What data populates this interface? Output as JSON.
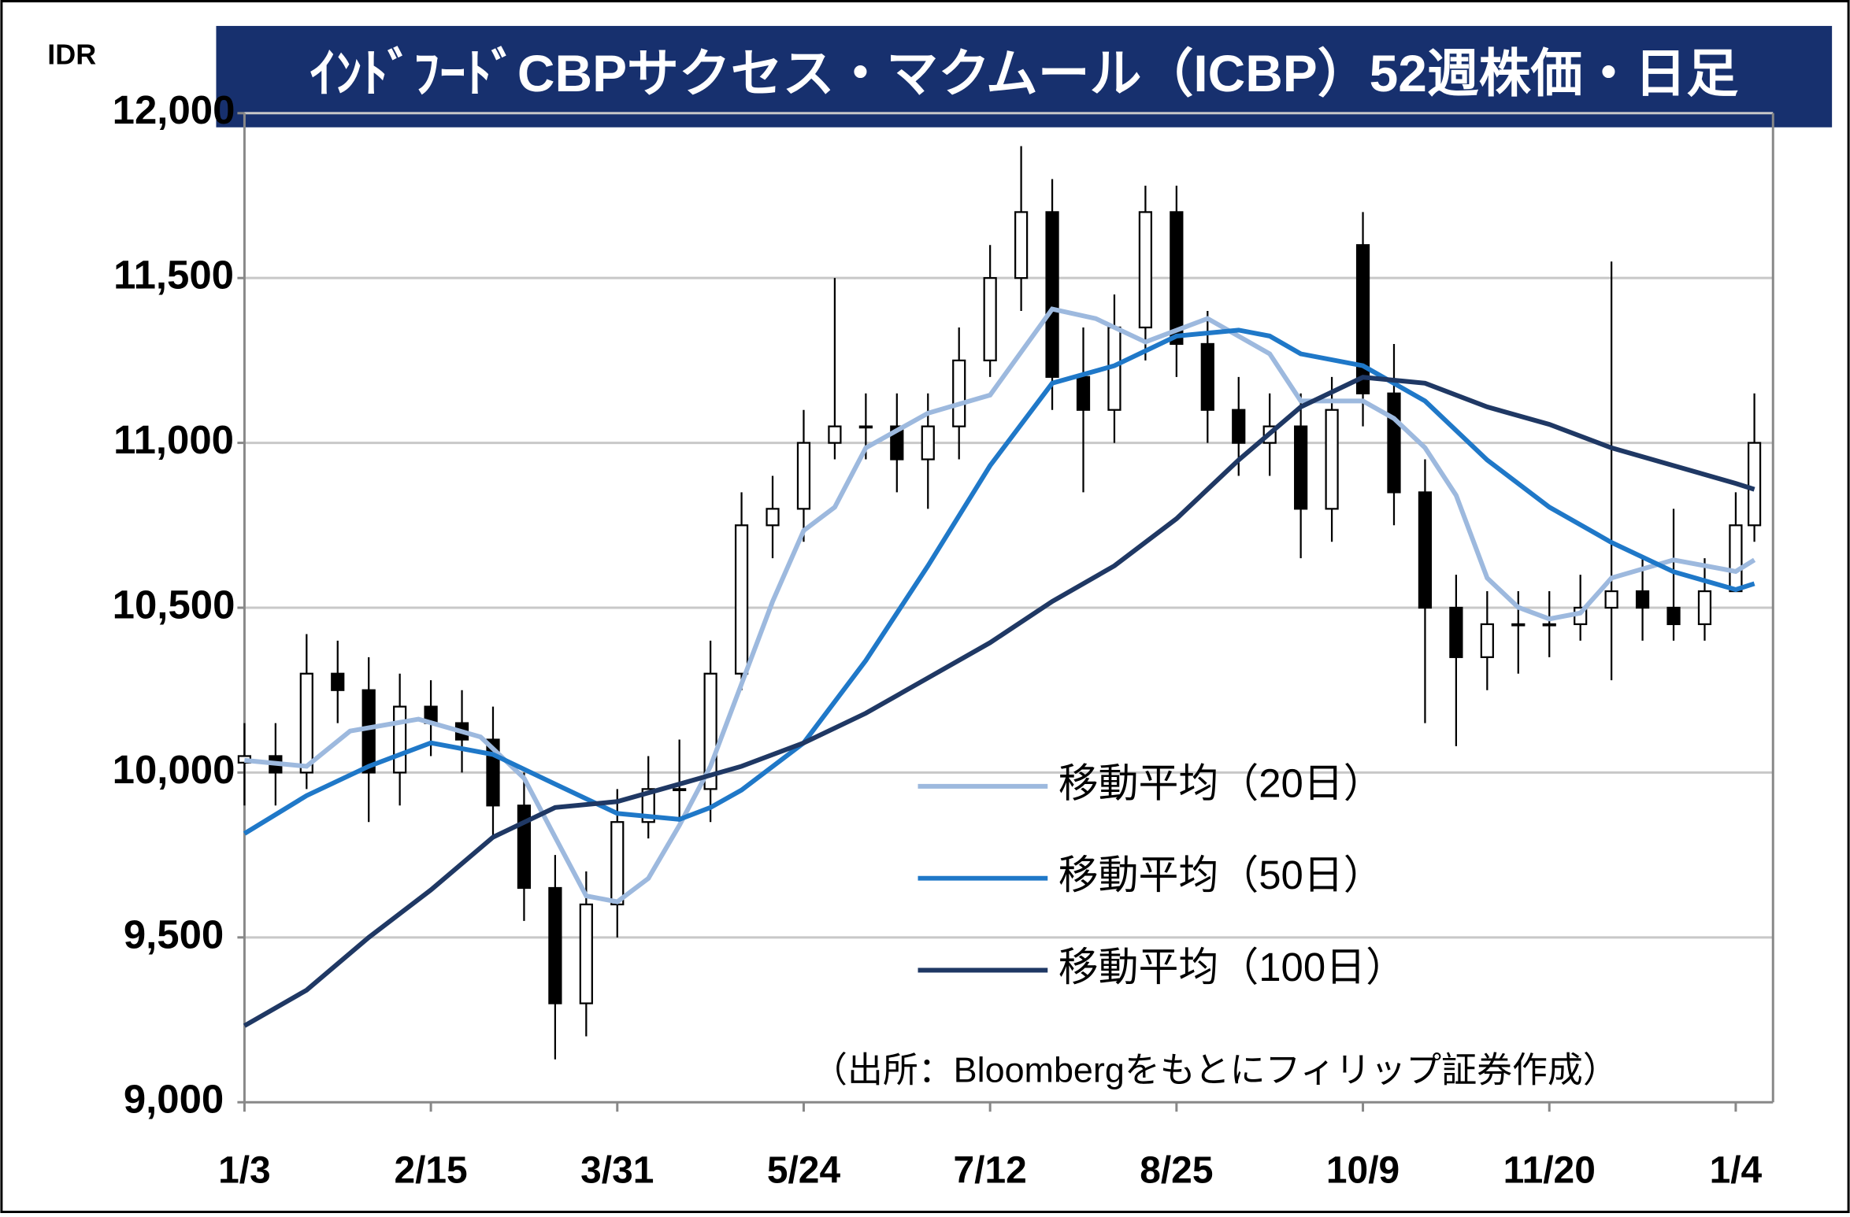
{
  "chart_data": {
    "type": "candlestick",
    "title": "ｲﾝﾄﾞﾌｰﾄﾞCBPサクセス・マクムール（ICBP）52週株価・日足",
    "y_unit": "IDR",
    "source": "（出所：Bloombergをもとにフィリップ証券作成）",
    "xlim": [
      0,
      246
    ],
    "xticks": [
      {
        "value": 0,
        "label": "1/3"
      },
      {
        "value": 30,
        "label": "2/15"
      },
      {
        "value": 60,
        "label": "3/31"
      },
      {
        "value": 90,
        "label": "5/24"
      },
      {
        "value": 120,
        "label": "7/12"
      },
      {
        "value": 150,
        "label": "8/25"
      },
      {
        "value": 180,
        "label": "10/9"
      },
      {
        "value": 210,
        "label": "11/20"
      },
      {
        "value": 240,
        "label": "1/4"
      }
    ],
    "ylim": [
      9000,
      12000
    ],
    "yticks": [
      {
        "value": 9000,
        "label": "9,000"
      },
      {
        "value": 9500,
        "label": "9,500"
      },
      {
        "value": 10000,
        "label": "10,000"
      },
      {
        "value": 10500,
        "label": "10,500"
      },
      {
        "value": 11000,
        "label": "11,000"
      },
      {
        "value": 11500,
        "label": "11,500"
      },
      {
        "value": 12000,
        "label": "12,000"
      }
    ],
    "grid": true,
    "candles": {
      "up_color": "#ffffff",
      "down_color": "#000000",
      "x": [
        0,
        5,
        10,
        15,
        20,
        25,
        30,
        35,
        40,
        45,
        50,
        55,
        60,
        65,
        70,
        75,
        80,
        85,
        90,
        95,
        100,
        105,
        110,
        115,
        120,
        125,
        130,
        135,
        140,
        145,
        150,
        155,
        160,
        165,
        170,
        175,
        180,
        185,
        190,
        195,
        200,
        205,
        210,
        215,
        220,
        225,
        230,
        235,
        240,
        243
      ],
      "open": [
        10030,
        10050,
        10000,
        10300,
        10250,
        10000,
        10200,
        10150,
        10100,
        9900,
        9650,
        9300,
        9600,
        9850,
        9950,
        9950,
        10300,
        10750,
        10800,
        11000,
        11050,
        11050,
        10950,
        11050,
        11250,
        11500,
        11700,
        11200,
        11100,
        11350,
        11700,
        11300,
        11100,
        11000,
        11050,
        10800,
        11600,
        11150,
        10850,
        10500,
        10350,
        10450,
        10450,
        10450,
        10500,
        10550,
        10500,
        10450,
        10550,
        10750
      ],
      "high": [
        10150,
        10150,
        10420,
        10400,
        10350,
        10300,
        10280,
        10250,
        10200,
        10000,
        9750,
        9700,
        9950,
        10050,
        10100,
        10400,
        10850,
        10900,
        11100,
        11500,
        11150,
        11150,
        11150,
        11350,
        11600,
        11900,
        11800,
        11350,
        11450,
        11780,
        11780,
        11400,
        11200,
        11150,
        11150,
        11200,
        11700,
        11300,
        10950,
        10600,
        10550,
        10550,
        10550,
        10600,
        11550,
        10650,
        10800,
        10650,
        10850,
        11150
      ],
      "low": [
        9900,
        9900,
        9950,
        10150,
        9850,
        9900,
        10050,
        10000,
        9800,
        9550,
        9130,
        9200,
        9500,
        9800,
        9850,
        9850,
        10250,
        10650,
        10700,
        10950,
        10950,
        10850,
        10800,
        10950,
        11200,
        11400,
        11100,
        10850,
        11000,
        11250,
        11200,
        11000,
        10900,
        10900,
        10650,
        10700,
        11050,
        10750,
        10150,
        10080,
        10250,
        10300,
        10350,
        10400,
        10280,
        10400,
        10400,
        10400,
        10550,
        10700
      ],
      "close": [
        10050,
        10000,
        10300,
        10250,
        10000,
        10200,
        10150,
        10100,
        9900,
        9650,
        9300,
        9600,
        9850,
        9950,
        9950,
        10300,
        10750,
        10800,
        11000,
        11050,
        11050,
        10950,
        11050,
        11250,
        11500,
        11700,
        11200,
        11100,
        11350,
        11700,
        11300,
        11100,
        11000,
        11050,
        10800,
        11100,
        11150,
        10850,
        10500,
        10350,
        10450,
        10450,
        10450,
        10500,
        10550,
        10500,
        10450,
        10550,
        10750,
        11000
      ]
    },
    "series": [
      {
        "name": "移動平均（20日）",
        "color": "#9db9de",
        "x": [
          0,
          10,
          17,
          28,
          38,
          45,
          50,
          55,
          60,
          65,
          70,
          75,
          80,
          85,
          90,
          95,
          100,
          110,
          120,
          130,
          137,
          145,
          155,
          165,
          170,
          180,
          185,
          190,
          195,
          200,
          205,
          210,
          215,
          220,
          230,
          240,
          243
        ],
        "values": [
          10037,
          10019,
          10126,
          10162,
          10108,
          9983,
          9804,
          9626,
          9608,
          9679,
          9840,
          10019,
          10269,
          10519,
          10734,
          10805,
          10985,
          11090,
          11145,
          11406,
          11377,
          11306,
          11377,
          11270,
          11127,
          11127,
          11074,
          10985,
          10841,
          10590,
          10501,
          10466,
          10484,
          10590,
          10645,
          10610,
          10645
        ]
      },
      {
        "name": "移動平均（50日）",
        "color": "#1f78c8",
        "x": [
          0,
          10,
          20,
          30,
          40,
          50,
          60,
          70,
          75,
          80,
          90,
          100,
          110,
          120,
          130,
          140,
          150,
          160,
          165,
          170,
          180,
          190,
          200,
          210,
          220,
          230,
          240,
          243
        ],
        "values": [
          9815,
          9930,
          10019,
          10090,
          10055,
          9965,
          9876,
          9858,
          9894,
          9947,
          10090,
          10340,
          10627,
          10931,
          11181,
          11234,
          11324,
          11342,
          11324,
          11270,
          11234,
          11127,
          10948,
          10805,
          10698,
          10609,
          10555,
          10573
        ]
      },
      {
        "name": "移動平均（100日）",
        "color": "#1f3864",
        "x": [
          0,
          10,
          20,
          30,
          40,
          50,
          60,
          70,
          80,
          90,
          100,
          110,
          120,
          130,
          140,
          150,
          160,
          170,
          180,
          190,
          200,
          210,
          220,
          230,
          240,
          243
        ],
        "values": [
          9232,
          9340,
          9500,
          9644,
          9804,
          9894,
          9912,
          9965,
          10019,
          10090,
          10180,
          10287,
          10394,
          10519,
          10627,
          10770,
          10948,
          11109,
          11199,
          11181,
          11109,
          11056,
          10985,
          10931,
          10877,
          10859
        ]
      }
    ]
  }
}
